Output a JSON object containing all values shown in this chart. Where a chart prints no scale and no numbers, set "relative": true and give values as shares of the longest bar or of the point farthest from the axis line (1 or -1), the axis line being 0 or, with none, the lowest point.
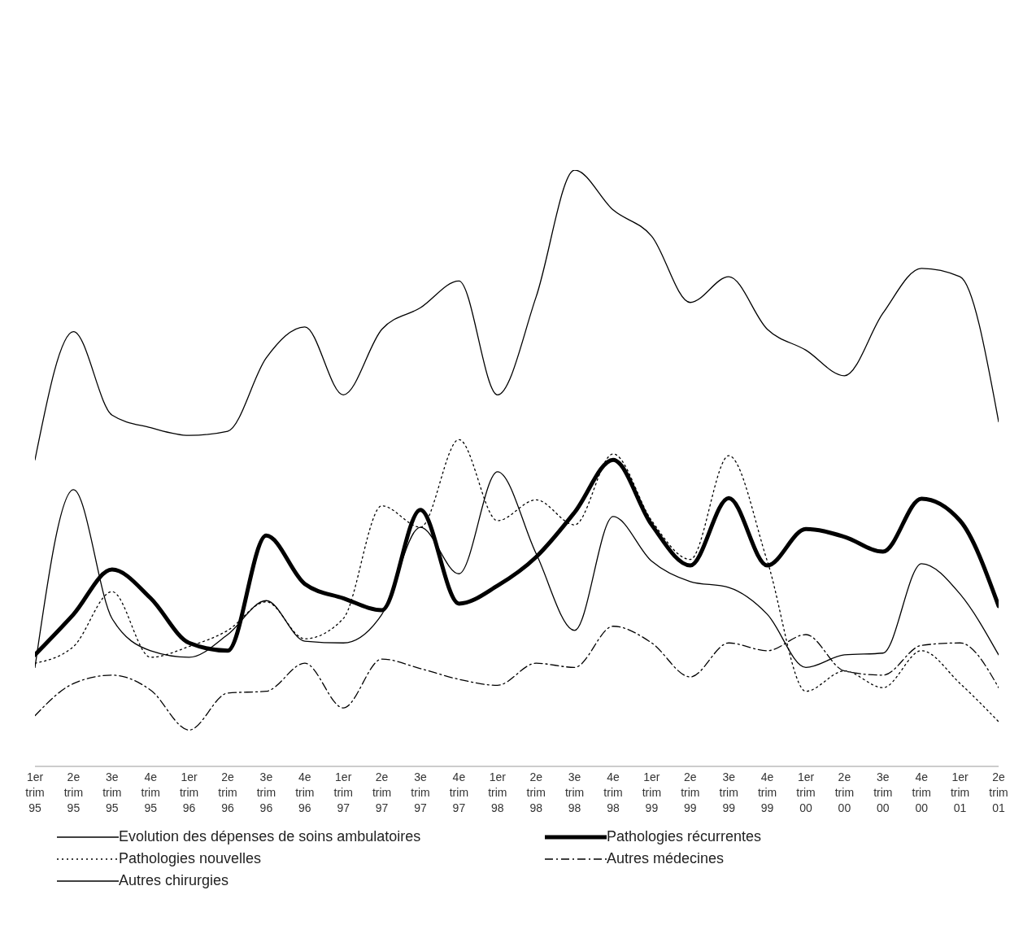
{
  "chart_data": {
    "type": "line",
    "relative": true,
    "categories": [
      "1er trim 95",
      "2e trim 95",
      "3e trim 95",
      "4e trim 95",
      "1er trim 96",
      "2e trim 96",
      "3e trim 96",
      "4e trim 96",
      "1er trim 97",
      "2e trim 97",
      "3e trim 97",
      "4e trim 97",
      "1er trim 98",
      "2e trim 98",
      "3e trim 98",
      "4e trim 98",
      "1er trim 99",
      "2e trim 99",
      "3e trim 99",
      "4e trim 99",
      "1er trim 00",
      "2e trim 00",
      "3e trim 00",
      "4e trim 00",
      "1er trim 01",
      "2e trim 01"
    ],
    "series": [
      {
        "name": "Evolution des dépenses de soins ambulatoires",
        "color": "#000000",
        "line_style": "solid",
        "values": [
          0.514,
          0.729,
          0.589,
          0.568,
          0.555,
          0.562,
          0.685,
          0.737,
          0.623,
          0.733,
          0.769,
          0.814,
          0.623,
          0.787,
          1,
          0.933,
          0.889,
          0.778,
          0.821,
          0.733,
          0.698,
          0.655,
          0.76,
          0.835,
          0.821,
          0.578
        ]
      },
      {
        "name": "Pathologies récurrentes",
        "color": "#000000",
        "line_style": "solid",
        "values": [
          0.187,
          0.255,
          0.33,
          0.282,
          0.207,
          0.194,
          0.387,
          0.306,
          0.282,
          0.262,
          0.43,
          0.273,
          0.303,
          0.351,
          0.426,
          0.514,
          0.405,
          0.337,
          0.45,
          0.337,
          0.398,
          0.385,
          0.36,
          0.449,
          0.412,
          0.269
        ]
      },
      {
        "name": "Pathologies nouvelles",
        "color": "#000000",
        "line_style": "dotted",
        "values": [
          0.173,
          0.201,
          0.293,
          0.183,
          0.201,
          0.228,
          0.276,
          0.214,
          0.248,
          0.437,
          0.401,
          0.548,
          0.412,
          0.447,
          0.405,
          0.524,
          0.412,
          0.347,
          0.521,
          0.344,
          0.126,
          0.16,
          0.132,
          0.194,
          0.139,
          0.075
        ]
      },
      {
        "name": "Autres médecines",
        "color": "#000000",
        "line_style": "dashed",
        "values": [
          0.085,
          0.139,
          0.153,
          0.128,
          0.061,
          0.123,
          0.126,
          0.173,
          0.098,
          0.18,
          0.164,
          0.146,
          0.136,
          0.173,
          0.166,
          0.235,
          0.207,
          0.15,
          0.207,
          0.194,
          0.221,
          0.16,
          0.153,
          0.203,
          0.207,
          0.132
        ]
      },
      {
        "name": "Autres chirurgies",
        "color": "#000000",
        "line_style": "solid",
        "values": [
          0.166,
          0.464,
          0.248,
          0.194,
          0.183,
          0.221,
          0.278,
          0.21,
          0.207,
          0.255,
          0.401,
          0.323,
          0.494,
          0.357,
          0.228,
          0.419,
          0.344,
          0.31,
          0.3,
          0.255,
          0.166,
          0.187,
          0.19,
          0.34,
          0.289,
          0.187
        ]
      }
    ],
    "legend": "bottom",
    "grid": false,
    "marker": "none"
  }
}
